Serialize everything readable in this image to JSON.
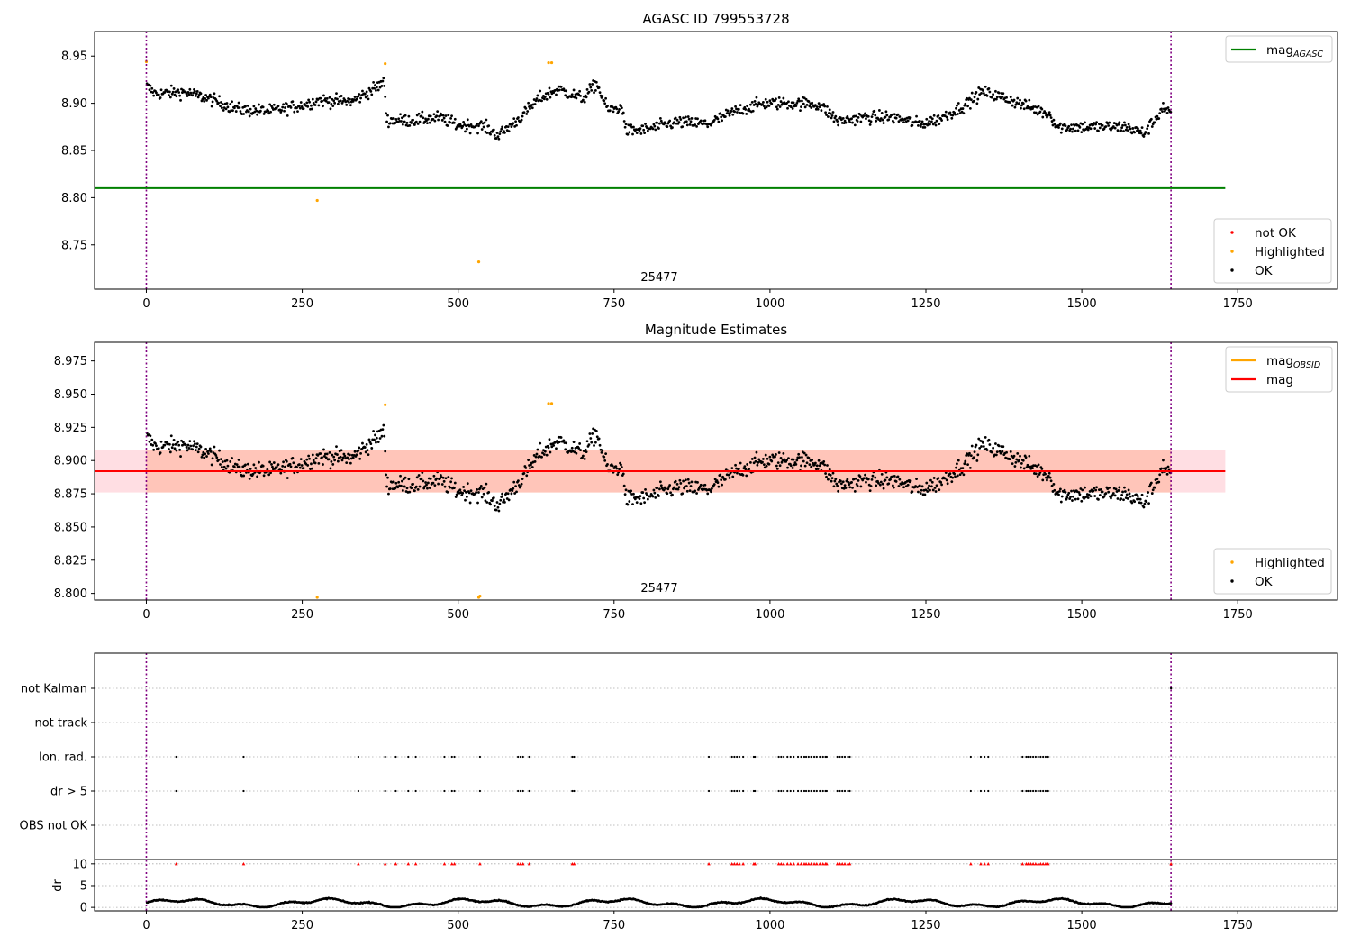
{
  "chart_data": [
    {
      "type": "scatter",
      "title": "AGASC ID 799553728",
      "xlim": [
        -83,
        1910
      ],
      "ylim": [
        8.703,
        8.976
      ],
      "xticks": [
        "0",
        "250",
        "500",
        "750",
        "1000",
        "1250",
        "1500",
        "1750"
      ],
      "yticks": [
        "8.75",
        "8.80",
        "8.85",
        "8.90",
        "8.95"
      ],
      "annotation": "25477",
      "annotation_x": 822,
      "vlines": [
        0,
        1643
      ],
      "hline": {
        "value": 8.81,
        "xmin": -83,
        "xmax": 1730,
        "color": "#008000",
        "legend": "mag",
        "legend_sub": "AGASC"
      },
      "legend_top": [
        {
          "label": "mag",
          "sub": "AGASC",
          "color": "#008000",
          "kind": "line"
        }
      ],
      "legend_bottom": [
        {
          "label": "not OK",
          "color": "#ff0000",
          "kind": "dot"
        },
        {
          "label": "Highlighted",
          "color": "#ffa500",
          "kind": "dot"
        },
        {
          "label": "OK",
          "color": "#000000",
          "kind": "dot"
        }
      ],
      "highlighted_points": [
        [
          0,
          8.944
        ],
        [
          274,
          8.797
        ],
        [
          383,
          8.942
        ],
        [
          533,
          8.732
        ],
        [
          645,
          8.943
        ],
        [
          650,
          8.943
        ]
      ]
    },
    {
      "type": "scatter",
      "title": "Magnitude Estimates",
      "xlim": [
        -83,
        1910
      ],
      "ylim": [
        8.795,
        8.989
      ],
      "xticks": [
        "0",
        "250",
        "500",
        "750",
        "1000",
        "1250",
        "1500",
        "1750"
      ],
      "yticks": [
        "8.800",
        "8.825",
        "8.850",
        "8.875",
        "8.900",
        "8.925",
        "8.950",
        "8.975"
      ],
      "annotation": "25477",
      "annotation_x": 822,
      "vlines": [
        0,
        1643
      ],
      "mag_line": {
        "value": 8.892,
        "color": "#ff0000"
      },
      "mag_band": [
        8.876,
        8.908
      ],
      "band_xmax": 1730,
      "legend_top": [
        {
          "label": "mag",
          "sub": "OBSID",
          "color": "#ffa500",
          "kind": "line"
        },
        {
          "label": "mag",
          "sub": "",
          "color": "#ff0000",
          "kind": "line"
        }
      ],
      "legend_bottom": [
        {
          "label": "Highlighted",
          "color": "#ffa500",
          "kind": "dot"
        },
        {
          "label": "OK",
          "color": "#000000",
          "kind": "dot"
        }
      ],
      "highlighted_points": [
        [
          383,
          8.942
        ],
        [
          645,
          8.943
        ],
        [
          650,
          8.943
        ],
        [
          274,
          8.797
        ],
        [
          533,
          8.797
        ],
        [
          535,
          8.798
        ]
      ]
    },
    {
      "type": "scatter",
      "title": "",
      "xlim": [
        -83,
        1910
      ],
      "flag_labels": [
        "not Kalman",
        "not track",
        "Ion. rad.",
        "dr > 5",
        "OBS not OK"
      ],
      "flag_events": [
        48,
        156,
        340,
        383,
        400,
        420,
        432,
        478,
        490,
        494,
        535,
        596,
        600,
        604,
        614,
        683,
        686,
        902,
        939,
        943,
        947,
        951,
        957,
        974,
        976,
        1014,
        1018,
        1022,
        1028,
        1033,
        1038,
        1045,
        1050,
        1055,
        1058,
        1062,
        1066,
        1071,
        1075,
        1080,
        1085,
        1089,
        1091,
        1108,
        1112,
        1116,
        1120,
        1125,
        1128,
        1322,
        1338,
        1344,
        1350,
        1405,
        1411,
        1414,
        1418,
        1422,
        1426,
        1430,
        1434,
        1438,
        1442,
        1446
      ],
      "not_kalman": [
        1643
      ],
      "dr_ylim": [
        -0.8,
        11
      ],
      "dr_yticks": [
        "0",
        "5",
        "10"
      ],
      "dr_label": "dr",
      "dr_xticks": [
        "0",
        "250",
        "500",
        "750",
        "1000",
        "1250",
        "1500",
        "1750"
      ]
    }
  ]
}
